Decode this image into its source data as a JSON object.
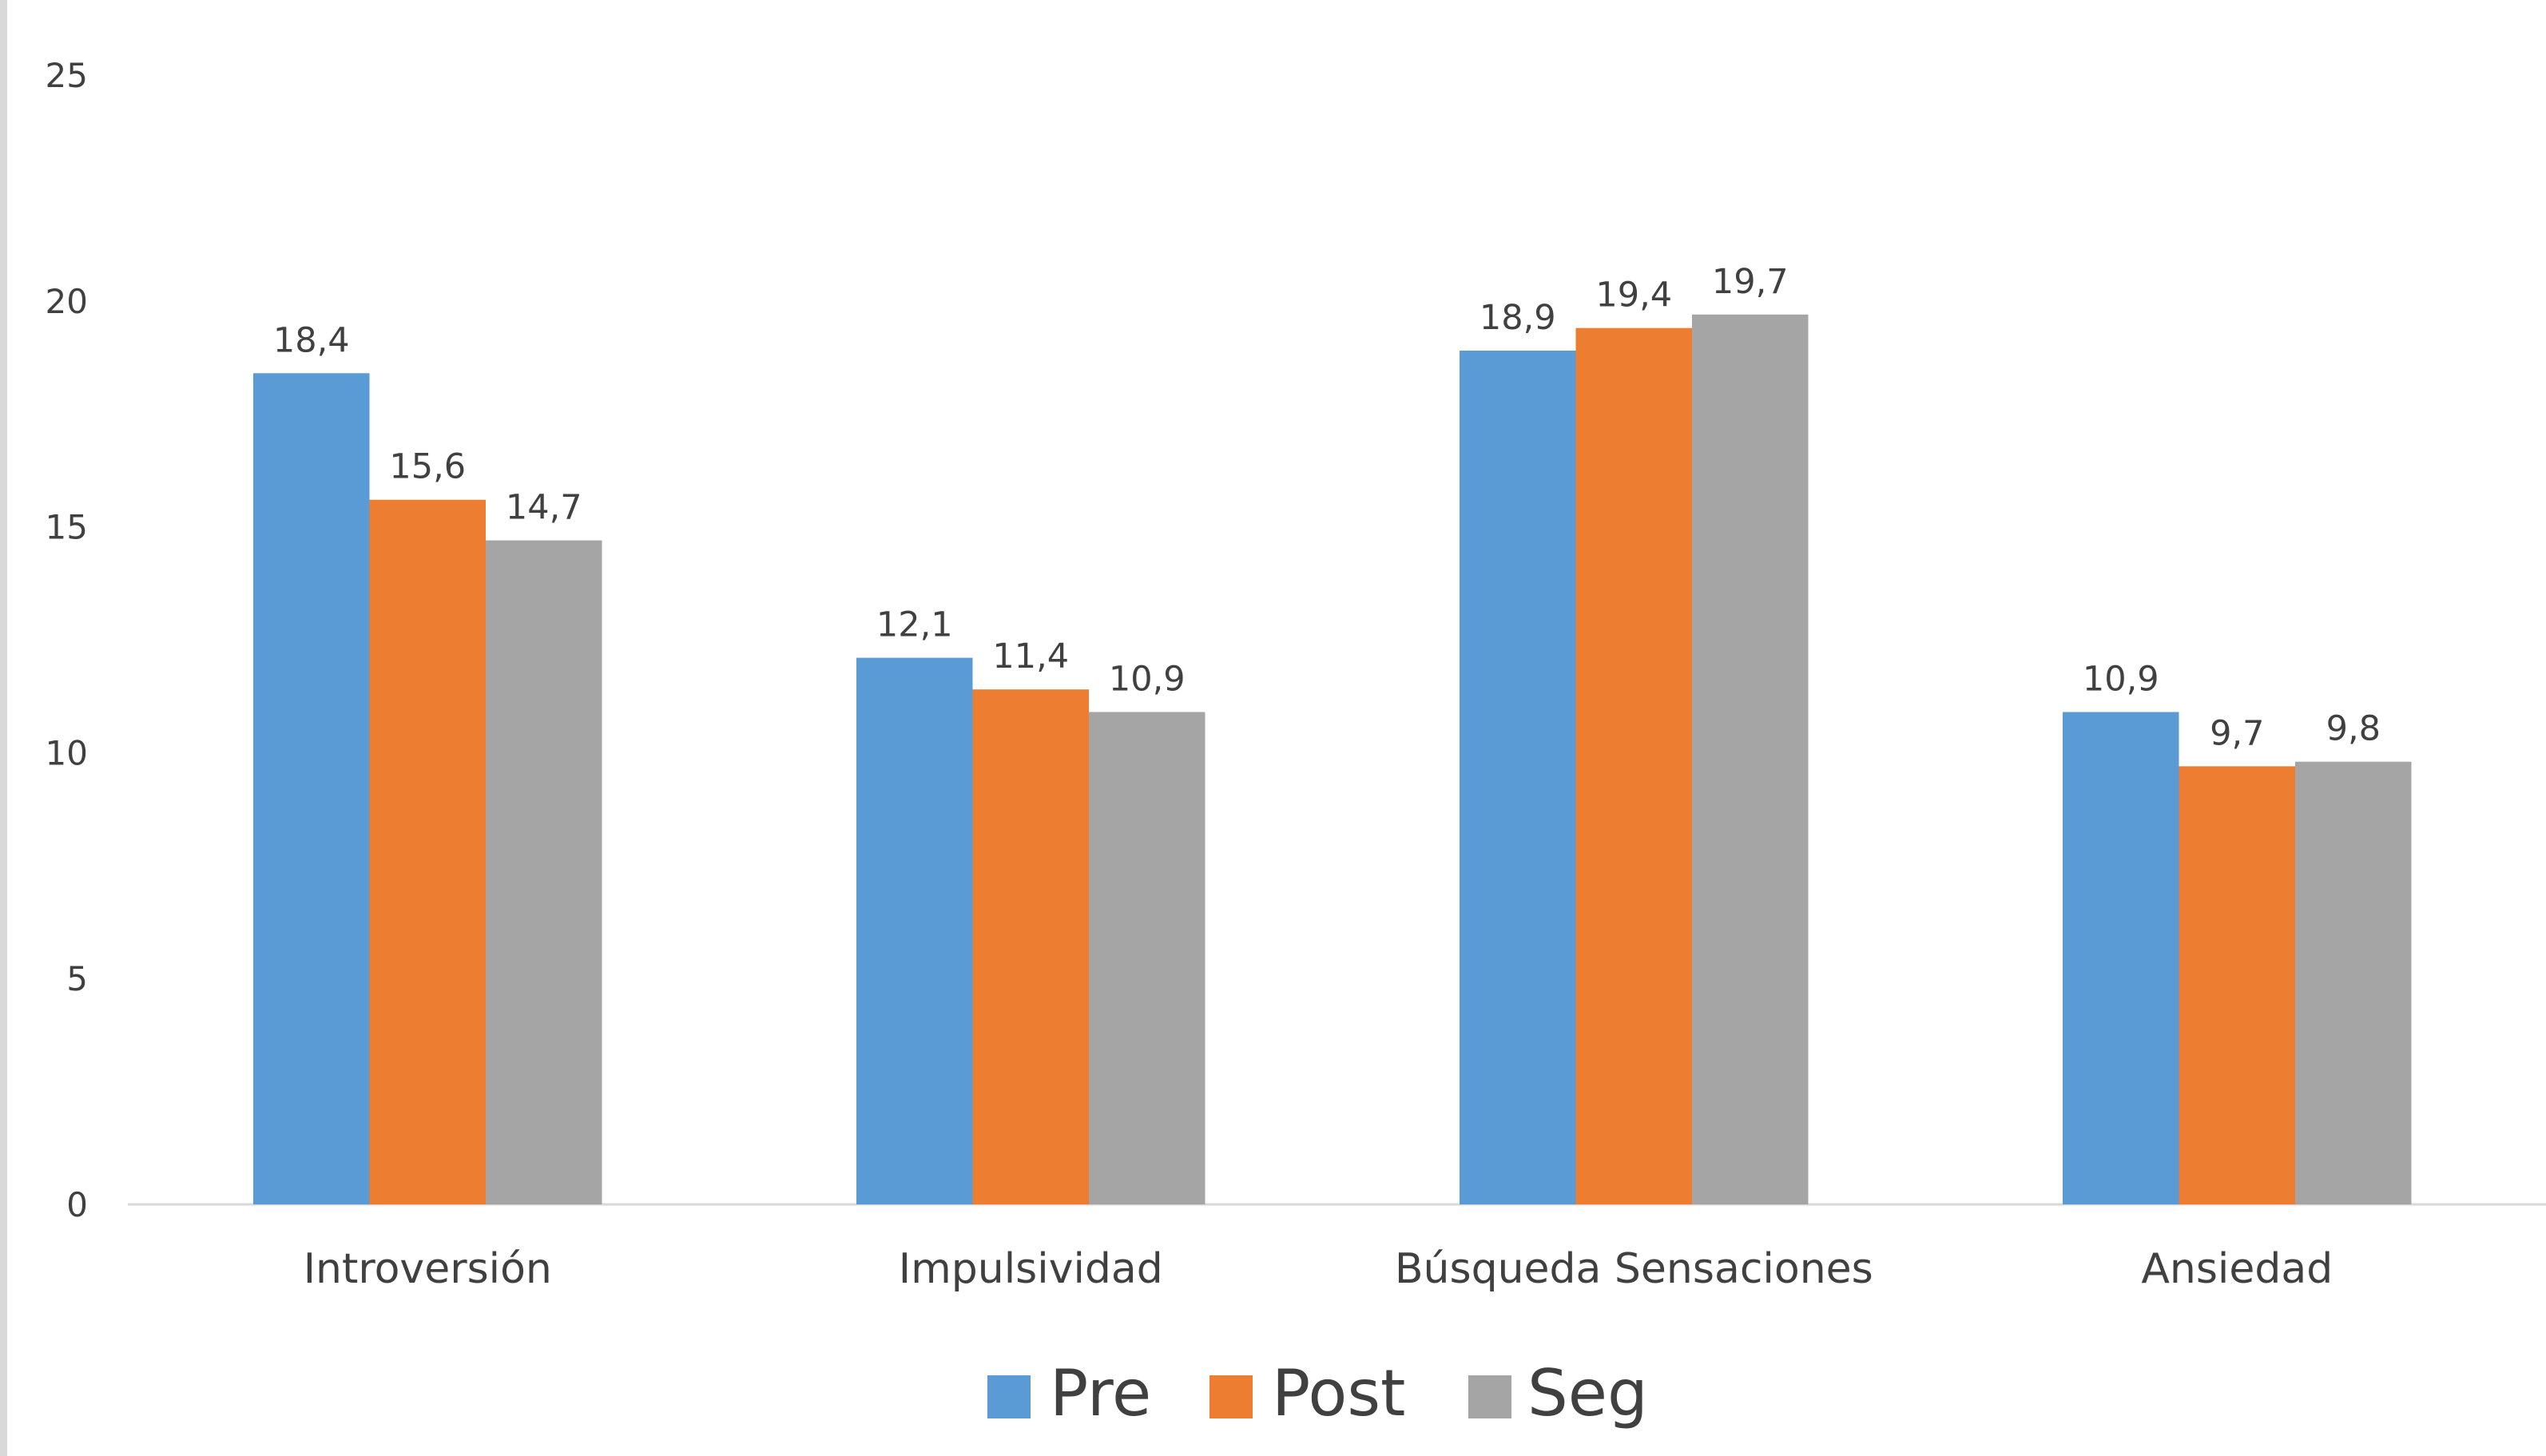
{
  "chart_data": {
    "type": "bar",
    "title": "",
    "xlabel": "",
    "ylabel": "",
    "ylim": [
      0,
      25
    ],
    "yticks": [
      0,
      5,
      10,
      15,
      20,
      25
    ],
    "grid": false,
    "legend_position": "bottom",
    "categories": [
      "Introversión",
      "Impulsividad",
      "Búsqueda Sensaciones",
      "Ansiedad"
    ],
    "series": [
      {
        "name": "Pre",
        "color": "#5b9bd5",
        "values": [
          18.4,
          12.1,
          18.9,
          10.9
        ],
        "labels": [
          "18,4",
          "12,1",
          "18,9",
          "10,9"
        ]
      },
      {
        "name": "Post",
        "color": "#ed7d31",
        "values": [
          15.6,
          11.4,
          19.4,
          9.7
        ],
        "labels": [
          "15,6",
          "11,4",
          "19,4",
          "9,7"
        ]
      },
      {
        "name": "Seg",
        "color": "#a5a5a5",
        "values": [
          14.7,
          10.9,
          19.7,
          9.8
        ],
        "labels": [
          "14,7",
          "10,9",
          "19,7",
          "9,8"
        ]
      }
    ]
  }
}
